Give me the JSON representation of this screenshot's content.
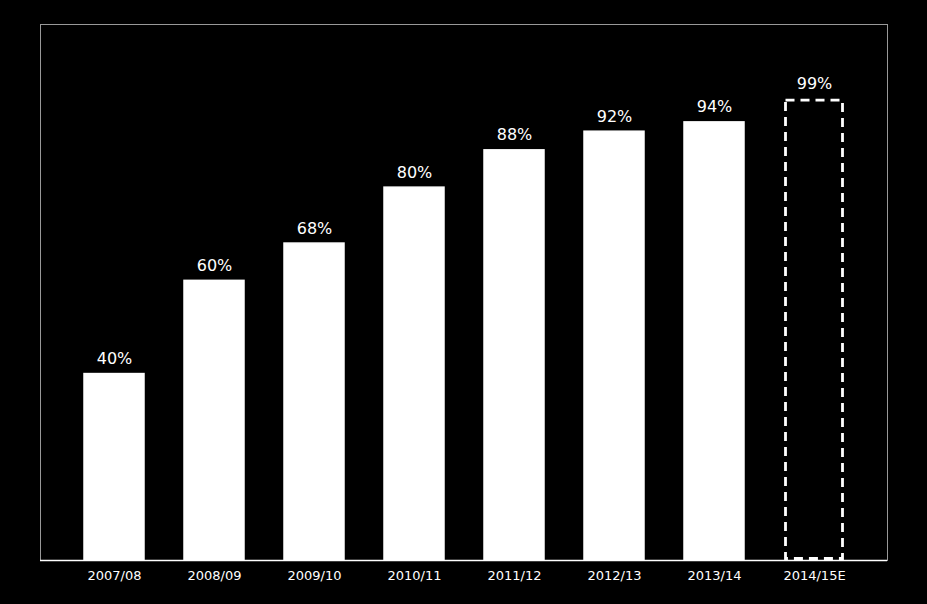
{
  "chart_data": {
    "type": "bar",
    "categories": [
      "2007/08",
      "2008/09",
      "2009/10",
      "2010/11",
      "2011/12",
      "2012/13",
      "2013/14",
      "2014/15E"
    ],
    "values": [
      40,
      60,
      68,
      80,
      88,
      92,
      94,
      99
    ],
    "value_labels": [
      "40%",
      "60%",
      "68%",
      "80%",
      "88%",
      "92%",
      "94%",
      "99%"
    ],
    "data_labels": true,
    "color": "#ffffff",
    "ylim": [
      0,
      115
    ],
    "tick_labels": "x",
    "grid": false
  }
}
